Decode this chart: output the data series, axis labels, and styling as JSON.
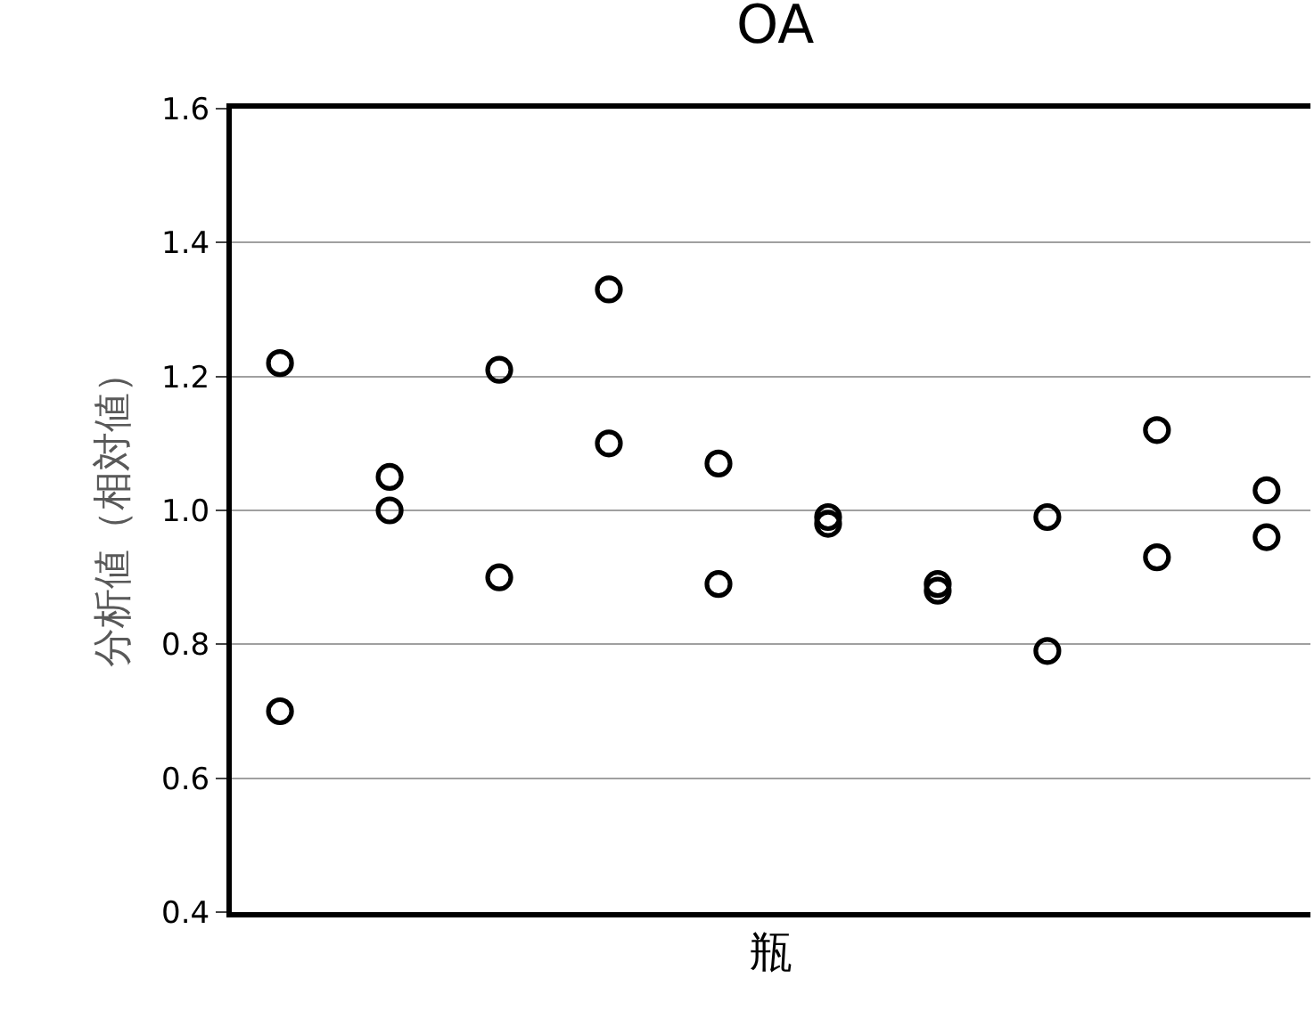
{
  "chart_data": {
    "type": "scatter",
    "title": "OA",
    "xlabel": "瓶",
    "ylabel": "分析値（相対値）",
    "categories": [
      null,
      null,
      null,
      null,
      null,
      null,
      null,
      null,
      null,
      null
    ],
    "series": [
      {
        "color": "#000000",
        "values": [
          1.22,
          1.05,
          1.21,
          1.33,
          1.07,
          0.99,
          0.89,
          0.99,
          1.12,
          1.03
        ]
      },
      {
        "color": "#000000",
        "values": [
          0.7,
          1.0,
          0.9,
          1.1,
          0.89,
          0.98,
          0.88,
          0.79,
          0.93,
          0.96
        ]
      }
    ],
    "ylim": [
      0.4,
      1.6
    ],
    "yticks": [
      {
        "value": 0.4,
        "label": "0.4"
      },
      {
        "value": 0.6,
        "label": "0.6"
      },
      {
        "value": 0.8,
        "label": "0.8"
      },
      {
        "value": 1.0,
        "label": "1.0"
      },
      {
        "value": 1.2,
        "label": "1.2"
      },
      {
        "value": 1.4,
        "label": "1.4"
      },
      {
        "value": 1.6,
        "label": "1.6"
      }
    ],
    "grid": "y",
    "marker": "circle",
    "tick_labels": "y"
  }
}
